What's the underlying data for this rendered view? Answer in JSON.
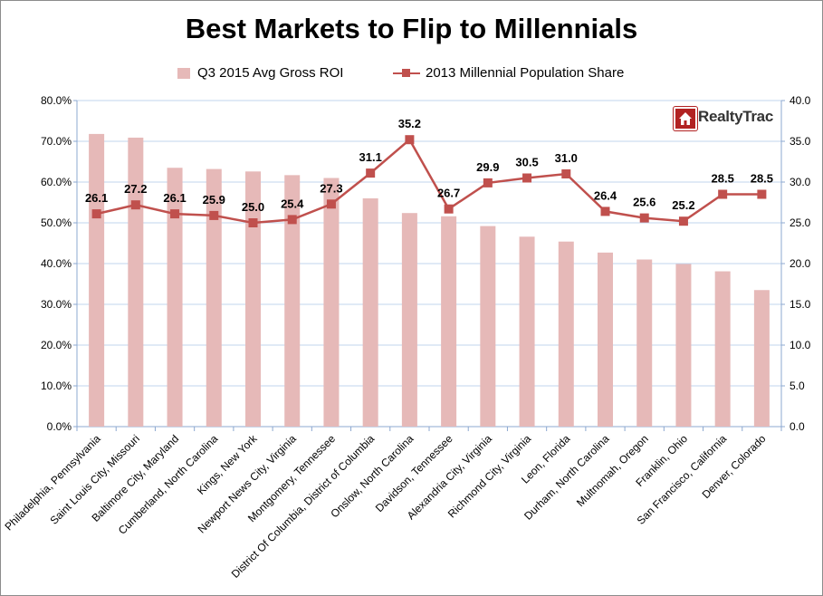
{
  "title": "Best Markets to Flip to Millennials",
  "logo": {
    "text": "RealtyTrac",
    "icon": "house-icon"
  },
  "colors": {
    "bar": "#e6b9b8",
    "line": "#c0504d",
    "grid": "#c0d4ec",
    "axis": "#8ca8d0"
  },
  "chart_data": {
    "type": "bar",
    "title": "Best Markets to Flip to Millennials",
    "categories": [
      "Philadelphia, Pennsylvania",
      "Saint Louis City, Missouri",
      "Baltimore City, Maryland",
      "Cumberland, North Carolina",
      "Kings, New York",
      "Newport News City, Virginia",
      "Montgomery, Tennessee",
      "District Of Columbia, District of Columbia",
      "Onslow, North Carolina",
      "Davidson, Tennessee",
      "Alexandria City, Virginia",
      "Richmond City, Virginia",
      "Leon, Florida",
      "Durham, North Carolina",
      "Multnomah, Oregon",
      "Franklin, Ohio",
      "San Francisco, California",
      "Denver, Colorado"
    ],
    "series": [
      {
        "name": "Q3 2015 Avg Gross ROI",
        "type": "bar",
        "axis": "left",
        "values": [
          71.8,
          70.9,
          63.5,
          63.2,
          62.6,
          61.7,
          61.0,
          56.0,
          52.4,
          51.6,
          49.2,
          46.6,
          45.4,
          42.7,
          41.0,
          39.9,
          38.1,
          33.5
        ]
      },
      {
        "name": "2013 Millennial Population Share",
        "type": "line",
        "axis": "right",
        "values": [
          26.1,
          27.2,
          26.1,
          25.9,
          25.0,
          25.4,
          27.3,
          31.1,
          35.2,
          26.7,
          29.9,
          30.5,
          31.0,
          26.4,
          25.6,
          25.2,
          28.5,
          28.5
        ],
        "labels": [
          "26.1",
          "27.2",
          "26.1",
          "25.9",
          "25.0",
          "25.4",
          "27.3",
          "31.1",
          "35.2",
          "26.7",
          "29.9",
          "30.5",
          "31.0",
          "26.4",
          "25.6",
          "25.2",
          "28.5",
          "28.5"
        ]
      }
    ],
    "y_left": {
      "min": 0,
      "max": 80,
      "ticks": [
        "0.0%",
        "10.0%",
        "20.0%",
        "30.0%",
        "40.0%",
        "50.0%",
        "60.0%",
        "70.0%",
        "80.0%"
      ]
    },
    "y_right": {
      "min": 0,
      "max": 40,
      "ticks": [
        "0.0",
        "5.0",
        "10.0",
        "15.0",
        "20.0",
        "25.0",
        "30.0",
        "35.0",
        "40.0"
      ]
    },
    "grid": true,
    "legend_position": "top"
  }
}
